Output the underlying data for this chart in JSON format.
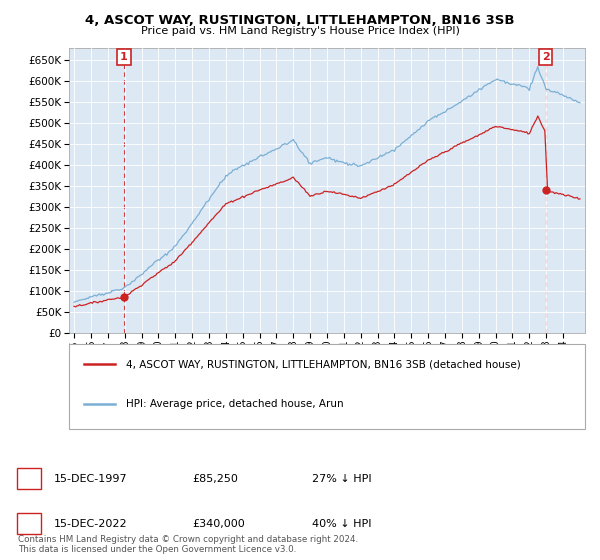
{
  "title": "4, ASCOT WAY, RUSTINGTON, LITTLEHAMPTON, BN16 3SB",
  "subtitle": "Price paid vs. HM Land Registry's House Price Index (HPI)",
  "ylim": [
    0,
    680000
  ],
  "yticks": [
    0,
    50000,
    100000,
    150000,
    200000,
    250000,
    300000,
    350000,
    400000,
    450000,
    500000,
    550000,
    600000,
    650000
  ],
  "xlim": [
    1994.7,
    2025.3
  ],
  "xticks": [
    1995,
    1996,
    1997,
    1998,
    1999,
    2000,
    2001,
    2002,
    2003,
    2004,
    2005,
    2006,
    2007,
    2008,
    2009,
    2010,
    2011,
    2012,
    2013,
    2014,
    2015,
    2016,
    2017,
    2018,
    2019,
    2020,
    2021,
    2022,
    2023,
    2024
  ],
  "hpi_color": "#7bafd4",
  "price_color": "#cc2222",
  "marker1_year": 1997.96,
  "marker1_price": 85250,
  "marker2_year": 2022.96,
  "marker2_price": 340000,
  "legend_price_label": "4, ASCOT WAY, RUSTINGTON, LITTLEHAMPTON, BN16 3SB (detached house)",
  "legend_hpi_label": "HPI: Average price, detached house, Arun",
  "footer_line1": "Contains HM Land Registry data © Crown copyright and database right 2024.",
  "footer_line2": "This data is licensed under the Open Government Licence v3.0.",
  "note1_label": "1",
  "note1_date": "15-DEC-1997",
  "note1_price": "£85,250",
  "note1_pct": "27% ↓ HPI",
  "note2_label": "2",
  "note2_date": "15-DEC-2022",
  "note2_price": "£340,000",
  "note2_pct": "40% ↓ HPI",
  "plot_bg_color": "#dce9f5",
  "fig_bg_color": "#ffffff",
  "grid_color": "#ffffff"
}
